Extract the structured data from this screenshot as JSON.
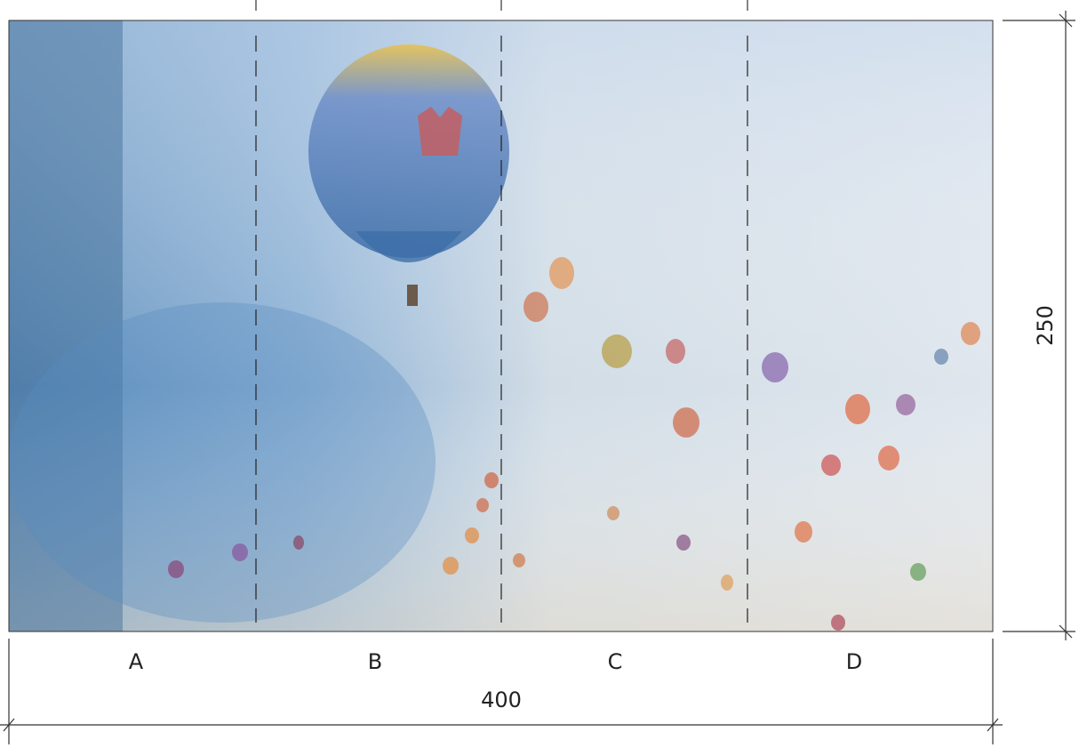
{
  "panels": [
    "A",
    "B",
    "C",
    "D"
  ],
  "dimensions": {
    "width": 400,
    "height": 250
  }
}
